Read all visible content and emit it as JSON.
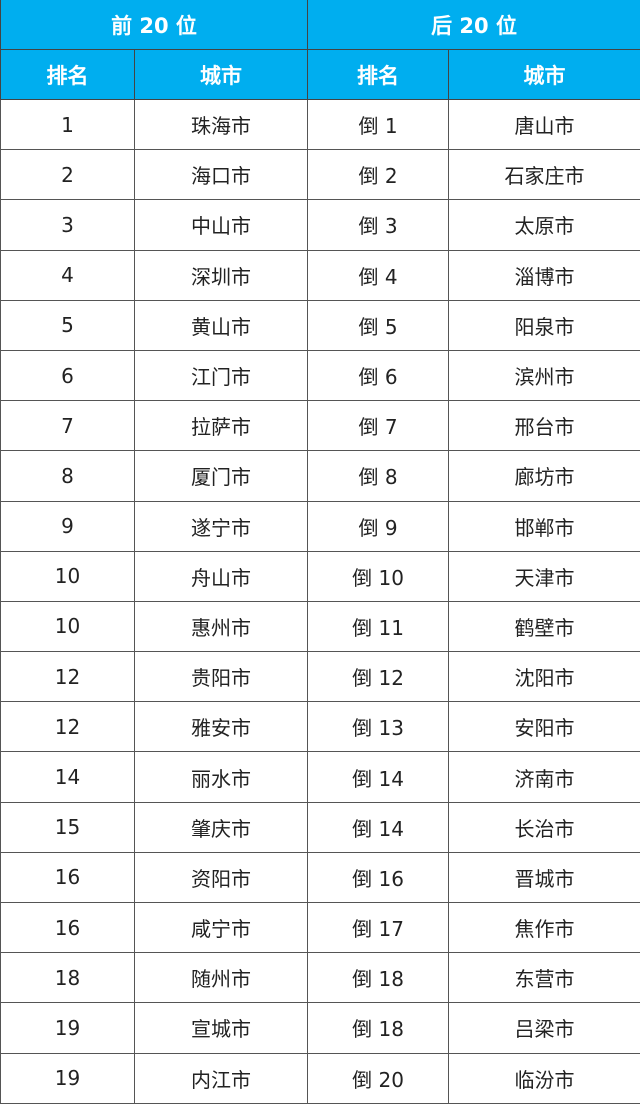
{
  "header": {
    "top": "前 20 位",
    "bottom": "后 20 位",
    "rank": "排名",
    "city": "城市"
  },
  "colors": {
    "header_bg": "#00aeef",
    "header_text": "#ffffff"
  },
  "rows": [
    {
      "r1": "1",
      "c1": "珠海市",
      "r2": "倒 1",
      "c2": "唐山市"
    },
    {
      "r1": "2",
      "c1": "海口市",
      "r2": "倒 2",
      "c2": "石家庄市"
    },
    {
      "r1": "3",
      "c1": "中山市",
      "r2": "倒 3",
      "c2": "太原市"
    },
    {
      "r1": "4",
      "c1": "深圳市",
      "r2": "倒 4",
      "c2": "淄博市"
    },
    {
      "r1": "5",
      "c1": "黄山市",
      "r2": "倒 5",
      "c2": "阳泉市"
    },
    {
      "r1": "6",
      "c1": "江门市",
      "r2": "倒 6",
      "c2": "滨州市"
    },
    {
      "r1": "7",
      "c1": "拉萨市",
      "r2": "倒 7",
      "c2": "邢台市"
    },
    {
      "r1": "8",
      "c1": "厦门市",
      "r2": "倒 8",
      "c2": "廊坊市"
    },
    {
      "r1": "9",
      "c1": "遂宁市",
      "r2": "倒 9",
      "c2": "邯郸市"
    },
    {
      "r1": "10",
      "c1": "舟山市",
      "r2": "倒 10",
      "c2": "天津市"
    },
    {
      "r1": "10",
      "c1": "惠州市",
      "r2": "倒 11",
      "c2": "鹤壁市"
    },
    {
      "r1": "12",
      "c1": "贵阳市",
      "r2": "倒 12",
      "c2": "沈阳市"
    },
    {
      "r1": "12",
      "c1": "雅安市",
      "r2": "倒 13",
      "c2": "安阳市"
    },
    {
      "r1": "14",
      "c1": "丽水市",
      "r2": "倒 14",
      "c2": "济南市"
    },
    {
      "r1": "15",
      "c1": "肇庆市",
      "r2": "倒 14",
      "c2": "长治市"
    },
    {
      "r1": "16",
      "c1": "资阳市",
      "r2": "倒 16",
      "c2": "晋城市"
    },
    {
      "r1": "16",
      "c1": "咸宁市",
      "r2": "倒 17",
      "c2": "焦作市"
    },
    {
      "r1": "18",
      "c1": "随州市",
      "r2": "倒 18",
      "c2": "东营市"
    },
    {
      "r1": "19",
      "c1": "宣城市",
      "r2": "倒 18",
      "c2": "吕梁市"
    },
    {
      "r1": "19",
      "c1": "内江市",
      "r2": "倒 20",
      "c2": "临汾市"
    }
  ]
}
